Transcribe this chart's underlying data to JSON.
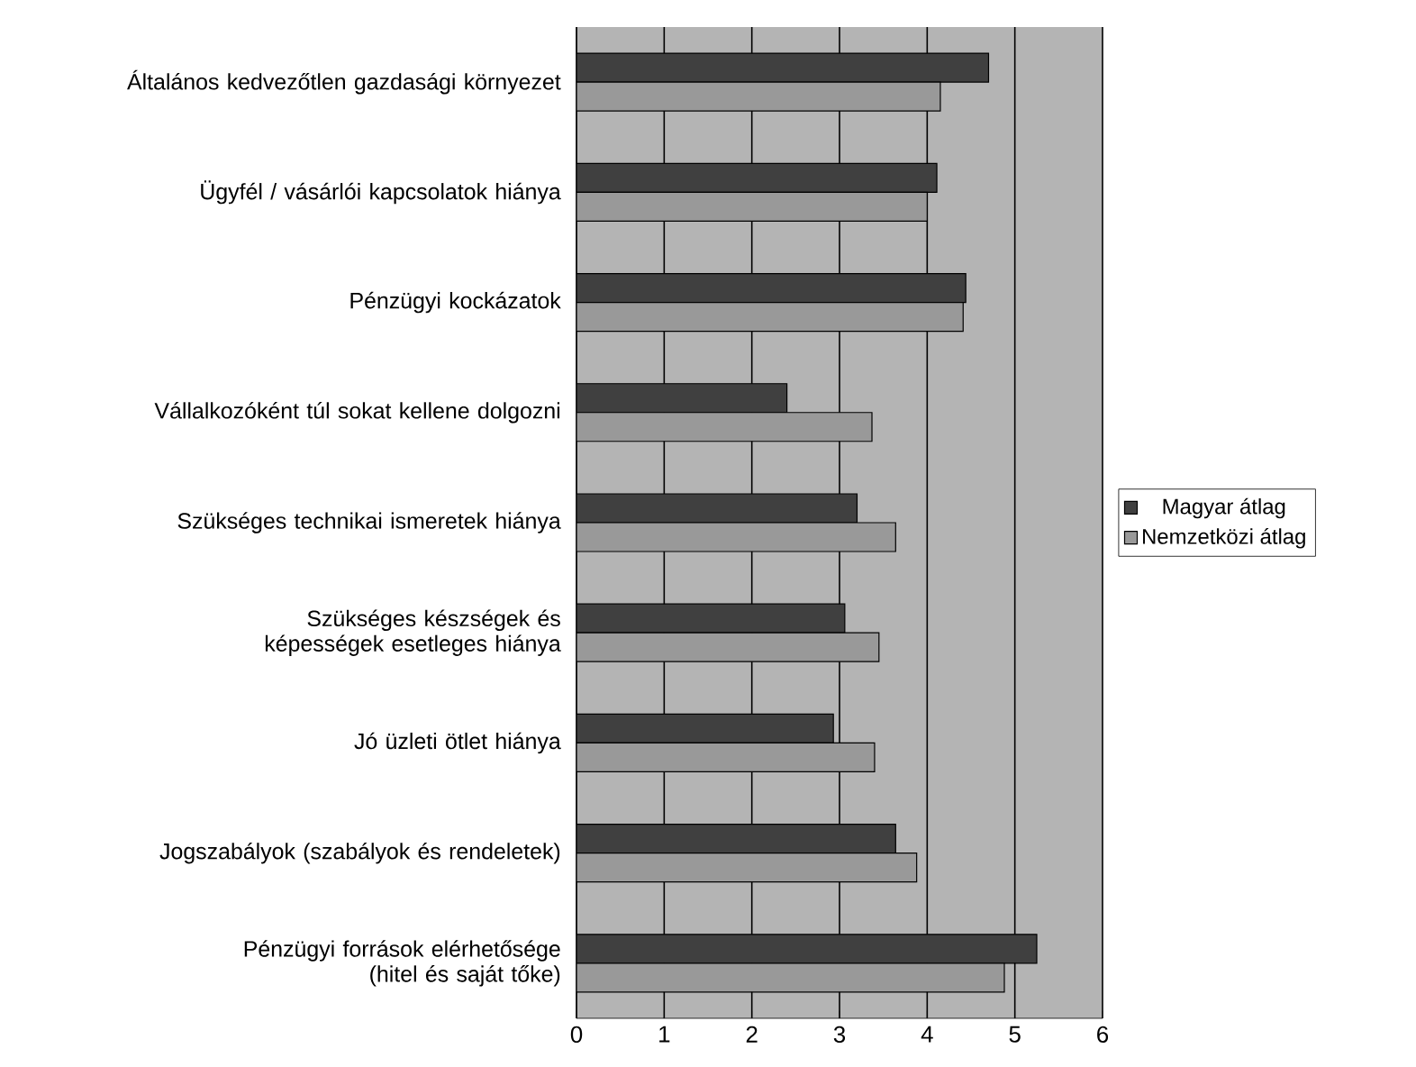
{
  "chart_data": {
    "type": "bar",
    "orientation": "horizontal",
    "categories": [
      "Általános kedvezőtlen gazdasági környezet",
      "Ügyfél / vásárlói kapcsolatok hiánya",
      "Pénzügyi kockázatok",
      "Vállalkozóként túl sokat kellene dolgozni",
      "Szükséges technikai ismeretek hiánya",
      "Szükséges készségek és képességek esetleges hiánya",
      "Jó üzleti ötlet hiánya",
      "Jogszabályok (szabályok és rendeletek)",
      "Pénzügyi források elérhetősége (hitel és saját tőke)"
    ],
    "series": [
      {
        "name": "Magyar átlag",
        "color": "#404040",
        "values": [
          4.7,
          4.11,
          4.44,
          2.4,
          3.2,
          3.06,
          2.93,
          3.64,
          5.25
        ]
      },
      {
        "name": "Nemzetközi átlag",
        "color": "#999999",
        "values": [
          4.15,
          4.0,
          4.41,
          3.37,
          3.64,
          3.45,
          3.4,
          3.88,
          4.88
        ]
      }
    ],
    "xlim": [
      0,
      6
    ],
    "xticks": [
      0,
      1,
      2,
      3,
      4,
      5,
      6
    ],
    "grid": "x",
    "legend": "right"
  }
}
